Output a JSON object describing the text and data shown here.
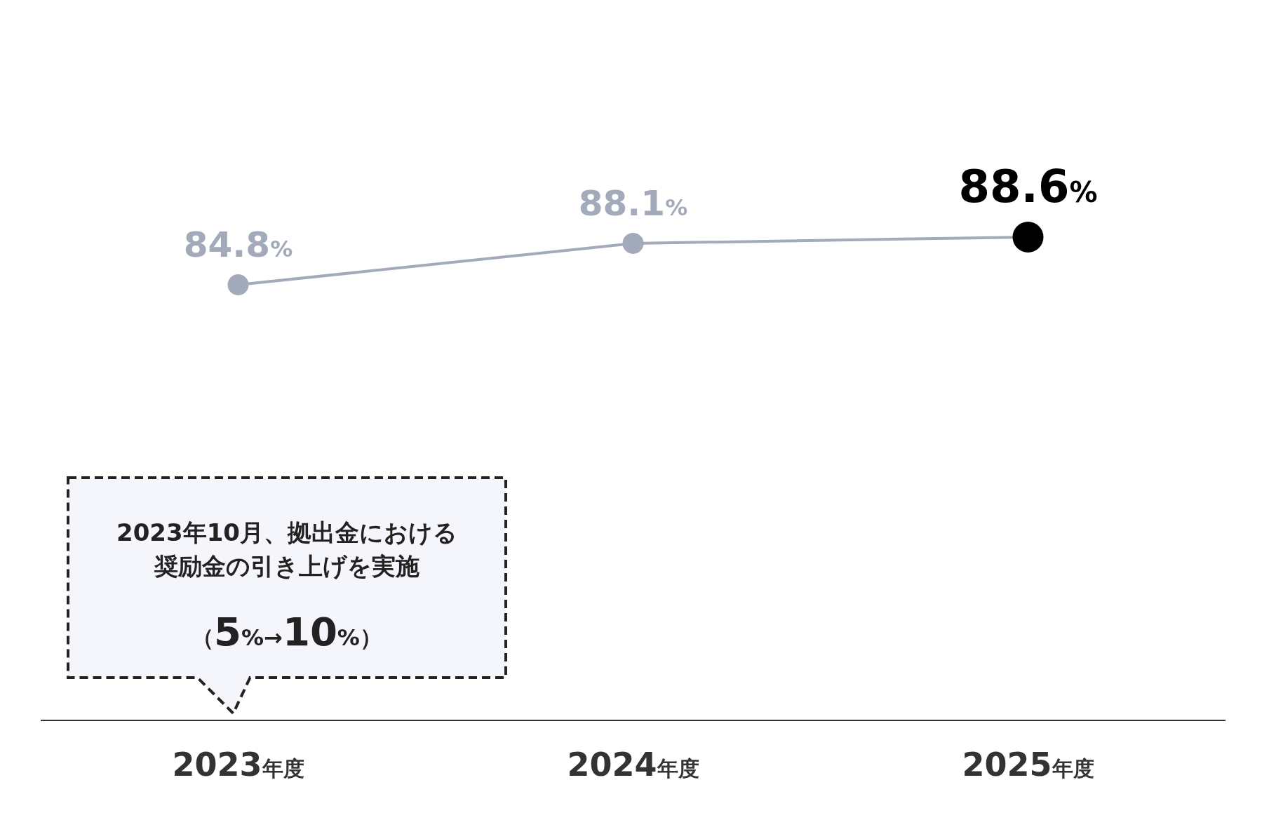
{
  "chart_data": {
    "type": "line",
    "categories": [
      "2023年度",
      "2024年度",
      "2025年度"
    ],
    "series": [
      {
        "color": "#a3aab9",
        "colors": [
          "#a3aab9",
          "#a3aab9",
          "#000000"
        ],
        "values": [
          84.8,
          88.1,
          88.6
        ],
        "value_labels": [
          "84.8%",
          "88.1%",
          "88.6%"
        ]
      }
    ],
    "tick_labels": "x",
    "marker": "circle",
    "line_style": "solid",
    "annotations": [
      "2023年10月、拠出金における奨励金の引き上げを実施",
      "（5%→10%）"
    ]
  }
}
